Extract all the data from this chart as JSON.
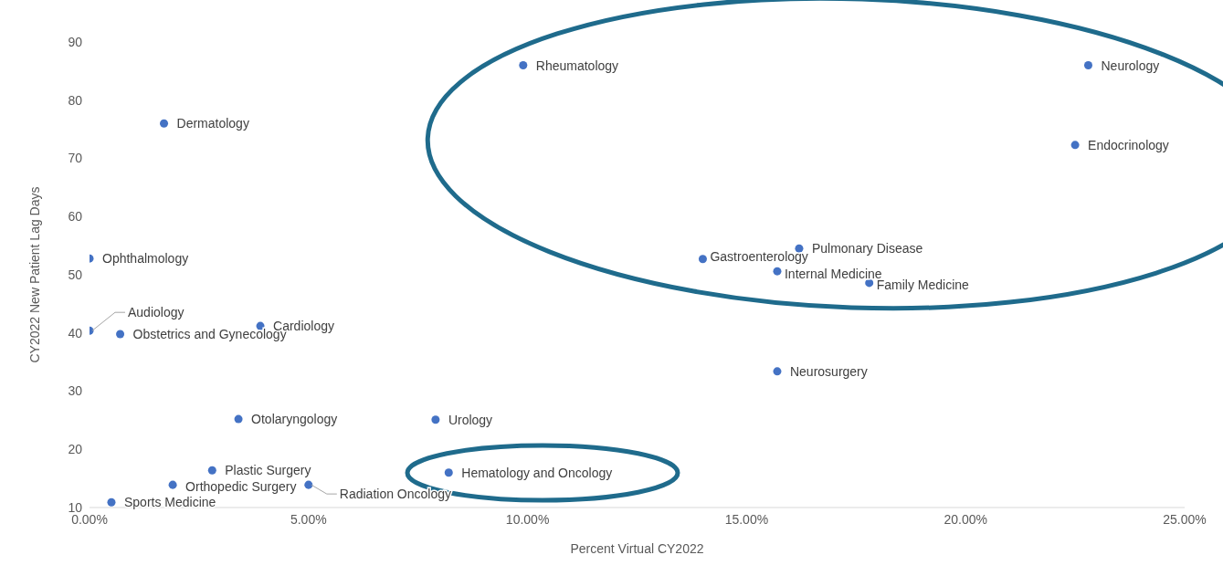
{
  "chart_data": {
    "type": "scatter",
    "xlabel": "Percent Virtual CY2022",
    "ylabel": "CY2022 New Patient Lag Days",
    "xlim": [
      0,
      25
    ],
    "xticks": [
      {
        "value": 0,
        "label": "0.00%"
      },
      {
        "value": 5,
        "label": "5.00%"
      },
      {
        "value": 10,
        "label": "10.00%"
      },
      {
        "value": 15,
        "label": "15.00%"
      },
      {
        "value": 20,
        "label": "20.00%"
      },
      {
        "value": 25,
        "label": "25.00%"
      }
    ],
    "ylim": [
      10,
      90
    ],
    "yticks": [
      10,
      20,
      30,
      40,
      50,
      60,
      70,
      80,
      90
    ],
    "grid": false,
    "legend": false,
    "marker": "circle",
    "series": [
      {
        "color": "#4472c4",
        "x": [
          9.9,
          22.8,
          22.5,
          1.7,
          0,
          0,
          0.7,
          3.9,
          16.2,
          14.0,
          15.7,
          17.8,
          15.7,
          3.4,
          7.9,
          2.8,
          8.2,
          1.9,
          5.0,
          0.5
        ],
        "values": [
          86,
          86,
          72.3,
          76,
          52.8,
          40.4,
          39.8,
          41.2,
          54.5,
          52.7,
          50.6,
          48.6,
          33.4,
          25.2,
          25.1,
          16.4,
          16.0,
          13.9,
          13.9,
          10.9
        ]
      }
    ],
    "annotations": [
      {
        "text": "Rheumatology",
        "x": 9.9,
        "y": 86
      },
      {
        "text": "Neurology",
        "x": 22.8,
        "y": 86
      },
      {
        "text": "Endocrinology",
        "x": 22.5,
        "y": 72.3
      },
      {
        "text": "Dermatology",
        "x": 1.7,
        "y": 76
      },
      {
        "text": "Ophthalmology",
        "x": 0,
        "y": 52.8
      },
      {
        "text": "Audiology",
        "x": 0,
        "y": 40.4
      },
      {
        "text": "Obstetrics and Gynecology",
        "x": 0.7,
        "y": 39.8
      },
      {
        "text": "Cardiology",
        "x": 3.9,
        "y": 41.2
      },
      {
        "text": "Pulmonary Disease",
        "x": 16.2,
        "y": 54.5
      },
      {
        "text": "Gastroenterology",
        "x": 14.0,
        "y": 52.7
      },
      {
        "text": "Internal Medicine",
        "x": 15.7,
        "y": 50.6
      },
      {
        "text": "Family Medicine",
        "x": 17.8,
        "y": 48.6
      },
      {
        "text": "Neurosurgery",
        "x": 15.7,
        "y": 33.4
      },
      {
        "text": "Otolaryngology",
        "x": 3.4,
        "y": 25.2
      },
      {
        "text": "Urology",
        "x": 7.9,
        "y": 25.1
      },
      {
        "text": "Plastic Surgery",
        "x": 2.8,
        "y": 16.4
      },
      {
        "text": "Hematology and Oncology",
        "x": 8.2,
        "y": 16.0
      },
      {
        "text": "Orthopedic Surgery",
        "x": 1.9,
        "y": 13.9
      },
      {
        "text": "Radiation Oncology",
        "x": 5.0,
        "y": 13.9
      },
      {
        "text": "Sports Medicine",
        "x": 0.5,
        "y": 10.9
      }
    ]
  }
}
